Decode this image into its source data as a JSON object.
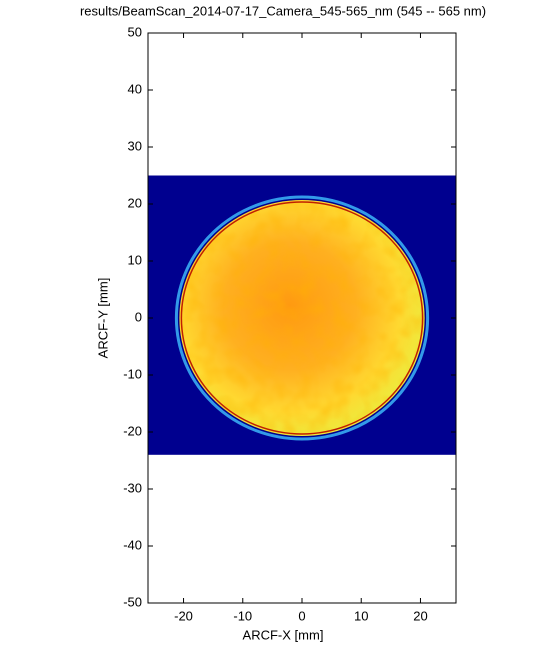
{
  "chart_data": {
    "type": "image",
    "title": "results/BeamScan_2014-07-17_Camera_545-565_nm (545 -- 565 nm)",
    "x_label": "ARCF-X [mm]",
    "y_label": "ARCF-Y [mm]",
    "xlim": [
      -26,
      26
    ],
    "ylim": [
      -50,
      50
    ],
    "xticks": [
      -20,
      -10,
      0,
      10,
      20
    ],
    "yticks": [
      -50,
      -40,
      -30,
      -20,
      -10,
      0,
      10,
      20,
      30,
      40,
      50
    ],
    "grid": false,
    "image_xlim": [
      -26,
      26
    ],
    "image_ylim": [
      -24,
      25
    ],
    "background_color": "#00008f",
    "beam_center": [
      0,
      0
    ],
    "beam_radius": 20.7
  }
}
